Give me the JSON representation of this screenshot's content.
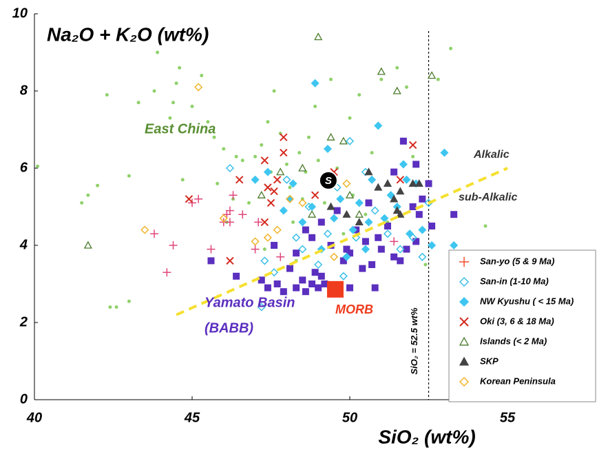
{
  "chart_data": {
    "type": "scatter",
    "title": "Na₂O + K₂O (wt%)",
    "x_label": "SiO₂ (wt%)",
    "xlim": [
      40,
      55
    ],
    "ylim": [
      0,
      10
    ],
    "xticks": [
      40,
      45,
      50,
      55
    ],
    "yticks": [
      0,
      2,
      4,
      6,
      8,
      10
    ],
    "legend": "lower right",
    "series": [
      {
        "name": "East China",
        "color": "#8fd16a",
        "marker": "dot",
        "in_legend": false,
        "x": [
          40.1,
          41.5,
          41.7,
          42,
          42.3,
          42.4,
          42.6,
          43,
          43,
          43.3,
          43.8,
          43.9,
          44.3,
          44.4,
          44.5,
          44.7,
          45,
          45.3,
          45.5,
          45.7,
          45.8,
          46,
          46.1,
          46.3,
          46.6,
          46.8,
          47,
          47.2,
          47.4,
          47.5,
          47.6,
          47.8,
          48,
          48.1,
          48.2,
          48.4,
          48.5,
          48.6,
          48.7,
          48.9,
          49,
          49.2,
          49.4,
          49.6,
          49.8,
          50,
          50.1,
          50.3,
          50.5,
          50.7,
          51,
          51.2,
          51.5,
          51.8,
          52,
          52.4,
          52.8,
          53.2,
          54.3,
          49.3,
          48.3,
          47.3,
          46.4,
          44.6
        ],
        "y": [
          6.05,
          5.1,
          5.3,
          5.55,
          7.9,
          2.4,
          2.4,
          2.55,
          5.8,
          7.7,
          8.0,
          9.0,
          7.3,
          7.7,
          8.2,
          5.7,
          7.6,
          8.4,
          7.2,
          6.8,
          5.6,
          6.5,
          4.6,
          5.2,
          6.2,
          5.1,
          6.3,
          6.6,
          7.2,
          5.9,
          8.0,
          6.9,
          6.1,
          5.5,
          4.6,
          6.4,
          5.2,
          5.9,
          6.8,
          7.6,
          6.2,
          5.1,
          8.3,
          6.0,
          4.3,
          7.3,
          5.3,
          7.9,
          4.8,
          6.4,
          8.3,
          4.6,
          8.6,
          8.1,
          6.3,
          3.5,
          8.3,
          9.1,
          4.5,
          3.0,
          3.6,
          3.9,
          6.3,
          8.6
        ]
      },
      {
        "name": "Yamato Basin",
        "color": "#5b2fbf",
        "marker": "square",
        "in_legend": false,
        "x": [
          45.6,
          46.4,
          47.2,
          47.4,
          47.7,
          47.9,
          48.1,
          48.3,
          48.5,
          48.6,
          48.8,
          48.9,
          49.1,
          49.2,
          47.6,
          48.3,
          48.6,
          48.8,
          49.1,
          49.4,
          49.6,
          49.8,
          50.0,
          50.2,
          50.4,
          50.5,
          50.7,
          50.9,
          51.0,
          51.2,
          51.4,
          51.6,
          51.8,
          52.0,
          52.1,
          52.3,
          52.5,
          52.6,
          53.3,
          51.7,
          52.1,
          52.2,
          51.4,
          50.6,
          49.9,
          50,
          49,
          50.8
        ],
        "y": [
          3.6,
          3.2,
          3.1,
          2.9,
          3.0,
          2.8,
          3.4,
          2.9,
          3.1,
          2.8,
          3.0,
          3.3,
          3.2,
          3.0,
          4.0,
          3.8,
          4.4,
          4.2,
          4.6,
          4.0,
          4.9,
          3.6,
          3.8,
          4.4,
          3.4,
          4.1,
          3.5,
          4.2,
          3.9,
          4.5,
          3.7,
          3.6,
          3.9,
          5.0,
          4.1,
          5.2,
          5.6,
          4.5,
          4.8,
          6.7,
          6.1,
          4.8,
          5.9,
          5.1,
          3.9,
          2.9,
          2.9,
          2.9
        ]
      },
      {
        "name": "San-yo (5 & 9 Ma)",
        "color": "#e0457b",
        "legend_color": "#f04e30",
        "marker": "plus",
        "in_legend": true,
        "x": [
          43.8,
          44.2,
          44.4,
          45.2,
          45.6,
          46,
          46.1,
          46.2,
          46.2,
          46.3,
          46.6,
          47.0,
          47.1,
          47.8,
          51.4,
          45
        ],
        "y": [
          4.3,
          3.3,
          4.0,
          5.2,
          3.9,
          4.6,
          4.8,
          4.9,
          4.6,
          5.3,
          4.8,
          3.9,
          4.6,
          3.7,
          4.1,
          5.1
        ]
      },
      {
        "name": "San-in (1-10 Ma)",
        "color": "#3bbfe8",
        "marker": "diamond-open",
        "in_legend": true,
        "x": [
          46.2,
          47.3,
          47.6,
          48,
          48.3,
          48.5,
          48.7,
          49.0,
          49.3,
          49.6,
          49.8,
          50,
          50.2,
          50.5,
          50.8,
          51.2,
          51.6,
          52,
          52.3,
          47.2,
          52.5
        ],
        "y": [
          6.0,
          3.6,
          3.3,
          5.7,
          4.2,
          3.9,
          5.0,
          3.5,
          4.3,
          5.5,
          3.2,
          6.7,
          4.2,
          5.9,
          4.9,
          4.3,
          3.9,
          4.2,
          3.7,
          2.4,
          5.1
        ]
      },
      {
        "name": "NW Kyushu ( < 15 Ma)",
        "color": "#3fc6f0",
        "marker": "diamond",
        "in_legend": true,
        "x": [
          47.0,
          47.4,
          47.9,
          48.2,
          48.5,
          48.8,
          48.9,
          49.1,
          49.3,
          49.5,
          49.7,
          49.9,
          50.1,
          50.3,
          50.5,
          50.7,
          50.9,
          51.1,
          51.3,
          51.5,
          51.7,
          51.9,
          52.1,
          52.3,
          52.6,
          53,
          53.3,
          48.1,
          50.6,
          51.8
        ],
        "y": [
          5.7,
          5.9,
          4.9,
          5.6,
          4.6,
          5.0,
          8.2,
          3.9,
          6.5,
          4.7,
          5.2,
          3.7,
          4.4,
          5.1,
          3.9,
          5.7,
          7.1,
          4.7,
          5.3,
          5.0,
          6.1,
          4.3,
          5.6,
          4.4,
          4.0,
          6.4,
          4.0,
          5.2,
          4.6,
          5.7
        ]
      },
      {
        "name": "Oki (3, 6 & 18 Ma)",
        "color": "#d42a1f",
        "marker": "x",
        "in_legend": true,
        "x": [
          44.9,
          46.2,
          46.5,
          47.3,
          47.4,
          47.5,
          47.6,
          47.7,
          47.9,
          47.9,
          47.3,
          48.9,
          51.6,
          52,
          49.5
        ],
        "y": [
          5.2,
          3.6,
          5.7,
          6.2,
          5.5,
          5.1,
          5.4,
          5.7,
          6.8,
          6.4,
          4.6,
          5.3,
          5.7,
          6.6,
          5.9
        ]
      },
      {
        "name": "Islands (< 2 Ma)",
        "color": "#4a7a2a",
        "marker": "triangle-open",
        "in_legend": true,
        "x": [
          41.7,
          47.2,
          47.8,
          48.5,
          49.0,
          49.4,
          49.8,
          50.0,
          50.3,
          51,
          51.5,
          52.6,
          48.8
        ],
        "y": [
          4.0,
          5.3,
          5.9,
          6.0,
          9.4,
          6.8,
          6.7,
          5.3,
          4.8,
          8.5,
          8.0,
          8.4,
          4.8
        ]
      },
      {
        "name": "SKP",
        "color": "#444444",
        "marker": "triangle",
        "in_legend": true,
        "x": [
          49.4,
          49.9,
          50.6,
          50.9,
          51.2,
          51.4,
          51.5,
          51.6,
          52.0,
          52.2,
          51.6,
          50.3
        ],
        "y": [
          5.0,
          4.8,
          5.9,
          5.5,
          5.6,
          5.2,
          4.9,
          5.4,
          5.6,
          5.6,
          4.8,
          4.6
        ]
      },
      {
        "name": "Korean Peninsula",
        "color": "#f0b429",
        "marker": "diamond-open",
        "in_legend": true,
        "x": [
          43.5,
          45.2,
          46.0,
          47.0,
          47.4,
          47.7,
          48.1,
          48.5,
          49.9,
          49.5
        ],
        "y": [
          4.4,
          8.1,
          4.7,
          4.1,
          4.2,
          4.4,
          5.2,
          5.1,
          5.6,
          3.7
        ]
      }
    ],
    "annotation_yamato": "(BABB)",
    "morb": {
      "name": "MORB",
      "x": 49.54,
      "y": 2.86,
      "color": "#f03c1e"
    },
    "s_point": {
      "label": "S",
      "x": 49.32,
      "y": 5.68
    },
    "divide_line": {
      "x": [
        44.5,
        55
      ],
      "y": [
        2.2,
        6.0
      ],
      "color": "#f5e030",
      "labels": [
        "Alkalic",
        "sub-Alkalic"
      ]
    },
    "sio2_line": {
      "x": 52.5,
      "label": "SiO₂ = 52.5 wt%"
    }
  }
}
